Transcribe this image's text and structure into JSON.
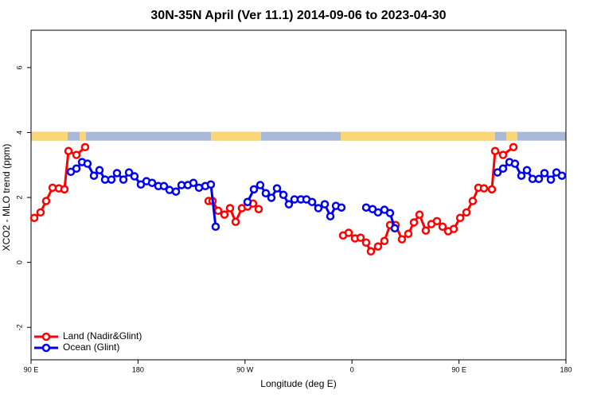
{
  "chart_data": {
    "type": "line",
    "title": "30N-35N April (Ver 11.1)   2014-09-06 to 2023-04-30",
    "x_label": "Longitude (deg E)",
    "y_label": "XCO2 - MLO trend (ppm)",
    "xlim": [
      90,
      540
    ],
    "xticks": [
      {
        "value": 90,
        "label": "90 E"
      },
      {
        "value": 180,
        "label": "180"
      },
      {
        "value": 270,
        "label": "90 W"
      },
      {
        "value": 360,
        "label": "0"
      },
      {
        "value": 450,
        "label": "90 E"
      },
      {
        "value": 540,
        "label": "180"
      }
    ],
    "ylim": [
      -3,
      7.15
    ],
    "yticks": [
      -2,
      0,
      2,
      4,
      6
    ],
    "legend": "bottom-left",
    "mask": {
      "ylim": [
        3.75,
        4.02
      ],
      "land_color": "#fbd676",
      "ocean_color": "#a7b8d8",
      "land": [
        [
          90,
          120.8
        ],
        [
          130.8,
          136.2
        ],
        [
          241.3,
          283.5
        ],
        [
          350.5,
          480.4
        ],
        [
          489.8,
          499.1
        ]
      ]
    },
    "series": [
      {
        "name": "Land (Nadir&Glint)",
        "color": "#ff0000",
        "x": [
          92.7,
          98.0,
          102.7,
          108.1,
          113.4,
          118.1,
          121.5,
          128.2,
          135.5,
          null,
          239.3,
          242.7,
          247.4,
          252.7,
          257.4,
          262.1,
          267.4,
          272.1,
          276.8,
          281.5,
          null,
          352.5,
          357.2,
          362.5,
          367.2,
          371.9,
          375.9,
          381.9,
          387.3,
          392.0,
          396.7,
          402.0,
          407.4,
          412.1,
          416.8,
          422.1,
          426.8,
          431.5,
          436.2,
          440.9,
          445.6,
          451.0,
          456.3,
          461.6,
          466.3,
          471.0,
          477.7,
          480.4,
          487.1,
          495.8
        ],
        "values": [
          1.37,
          1.54,
          1.89,
          2.3,
          2.28,
          2.25,
          3.43,
          3.31,
          3.55,
          null,
          1.89,
          1.89,
          1.59,
          1.47,
          1.67,
          1.25,
          1.67,
          1.72,
          1.81,
          1.64,
          null,
          0.83,
          0.91,
          0.74,
          0.76,
          0.61,
          0.34,
          0.49,
          0.66,
          1.15,
          1.15,
          0.71,
          0.88,
          1.23,
          1.47,
          0.98,
          1.18,
          1.27,
          1.1,
          0.96,
          1.03,
          1.37,
          1.54,
          1.89,
          2.3,
          2.28,
          2.25,
          3.43,
          3.31,
          3.55
        ]
      },
      {
        "name": "Ocean (Glint)",
        "color": "#0000ee",
        "x": [
          123.5,
          128.2,
          132.9,
          137.5,
          142.9,
          147.6,
          152.3,
          157.6,
          162.3,
          167.7,
          172.4,
          177.0,
          182.4,
          187.1,
          191.8,
          197.1,
          201.8,
          206.5,
          211.9,
          216.6,
          221.9,
          226.6,
          231.3,
          236.6,
          241.3,
          245.3,
          null,
          272.1,
          277.5,
          282.8,
          287.5,
          292.2,
          296.9,
          302.3,
          306.9,
          311.6,
          317.0,
          321.7,
          326.4,
          331.7,
          337.1,
          341.8,
          346.5,
          351.1,
          null,
          371.9,
          377.3,
          381.9,
          387.3,
          392.0,
          396.0,
          null,
          482.4,
          487.1,
          492.5,
          497.1,
          502.5,
          507.2,
          511.9,
          517.2,
          521.9,
          527.3,
          532.0,
          536.6
        ],
        "values": [
          2.79,
          2.89,
          3.09,
          3.04,
          2.67,
          2.84,
          2.55,
          2.55,
          2.75,
          2.55,
          2.77,
          2.65,
          2.4,
          2.5,
          2.45,
          2.35,
          2.35,
          2.23,
          2.18,
          2.38,
          2.38,
          2.45,
          2.3,
          2.35,
          2.4,
          1.1,
          null,
          1.86,
          2.25,
          2.38,
          2.13,
          1.99,
          2.28,
          2.08,
          1.79,
          1.94,
          1.94,
          1.94,
          1.86,
          1.67,
          1.79,
          1.42,
          1.74,
          1.69,
          null,
          1.69,
          1.64,
          1.54,
          1.62,
          1.52,
          1.05,
          null,
          2.77,
          2.89,
          3.09,
          3.04,
          2.67,
          2.84,
          2.57,
          2.57,
          2.75,
          2.55,
          2.77,
          2.67
        ]
      }
    ]
  }
}
